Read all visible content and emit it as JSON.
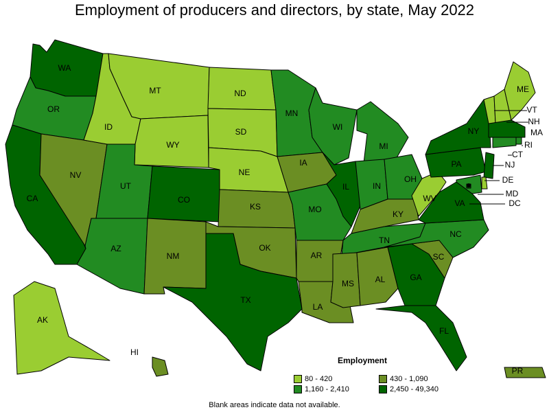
{
  "title": "Employment of producers and directors, by state, May 2022",
  "footnote": "Blank areas indicate data not available.",
  "legend": {
    "title": "Employment",
    "items": [
      {
        "label": "80 - 420",
        "color": "#9acd32"
      },
      {
        "label": "430 - 1,090",
        "color": "#6b8e23"
      },
      {
        "label": "1,160 - 2,410",
        "color": "#228b22"
      },
      {
        "label": "2,450 - 49,340",
        "color": "#006400"
      }
    ]
  },
  "colors": {
    "tier1": "#9acd32",
    "tier2": "#6b8e23",
    "tier3": "#228b22",
    "tier4": "#006400"
  },
  "states": [
    {
      "abbr": "WA",
      "tier": 4
    },
    {
      "abbr": "OR",
      "tier": 3
    },
    {
      "abbr": "CA",
      "tier": 4
    },
    {
      "abbr": "NV",
      "tier": 2
    },
    {
      "abbr": "ID",
      "tier": 1
    },
    {
      "abbr": "MT",
      "tier": 1
    },
    {
      "abbr": "WY",
      "tier": 1
    },
    {
      "abbr": "UT",
      "tier": 3
    },
    {
      "abbr": "AZ",
      "tier": 3
    },
    {
      "abbr": "CO",
      "tier": 4
    },
    {
      "abbr": "NM",
      "tier": 2
    },
    {
      "abbr": "ND",
      "tier": 1
    },
    {
      "abbr": "SD",
      "tier": 1
    },
    {
      "abbr": "NE",
      "tier": 1
    },
    {
      "abbr": "KS",
      "tier": 2
    },
    {
      "abbr": "OK",
      "tier": 2
    },
    {
      "abbr": "TX",
      "tier": 4
    },
    {
      "abbr": "MN",
      "tier": 3
    },
    {
      "abbr": "IA",
      "tier": 2
    },
    {
      "abbr": "MO",
      "tier": 3
    },
    {
      "abbr": "AR",
      "tier": 2
    },
    {
      "abbr": "LA",
      "tier": 2
    },
    {
      "abbr": "WI",
      "tier": 3
    },
    {
      "abbr": "IL",
      "tier": 4
    },
    {
      "abbr": "MI",
      "tier": 3
    },
    {
      "abbr": "IN",
      "tier": 3
    },
    {
      "abbr": "OH",
      "tier": 3
    },
    {
      "abbr": "KY",
      "tier": 2
    },
    {
      "abbr": "TN",
      "tier": 3
    },
    {
      "abbr": "MS",
      "tier": 2
    },
    {
      "abbr": "AL",
      "tier": 2
    },
    {
      "abbr": "GA",
      "tier": 4
    },
    {
      "abbr": "FL",
      "tier": 4
    },
    {
      "abbr": "SC",
      "tier": 2
    },
    {
      "abbr": "NC",
      "tier": 3
    },
    {
      "abbr": "VA",
      "tier": 4
    },
    {
      "abbr": "WV",
      "tier": 1
    },
    {
      "abbr": "PA",
      "tier": 4
    },
    {
      "abbr": "NY",
      "tier": 4
    },
    {
      "abbr": "VT",
      "tier": 1
    },
    {
      "abbr": "NH",
      "tier": 1
    },
    {
      "abbr": "ME",
      "tier": 1
    },
    {
      "abbr": "MA",
      "tier": 4
    },
    {
      "abbr": "RI",
      "tier": 3
    },
    {
      "abbr": "CT",
      "tier": 3
    },
    {
      "abbr": "NJ",
      "tier": 4
    },
    {
      "abbr": "DE",
      "tier": 1
    },
    {
      "abbr": "MD",
      "tier": 3
    },
    {
      "abbr": "DC",
      "tier": 4
    },
    {
      "abbr": "AK",
      "tier": 1
    },
    {
      "abbr": "HI",
      "tier": 2
    },
    {
      "abbr": "PR",
      "tier": 2
    }
  ]
}
